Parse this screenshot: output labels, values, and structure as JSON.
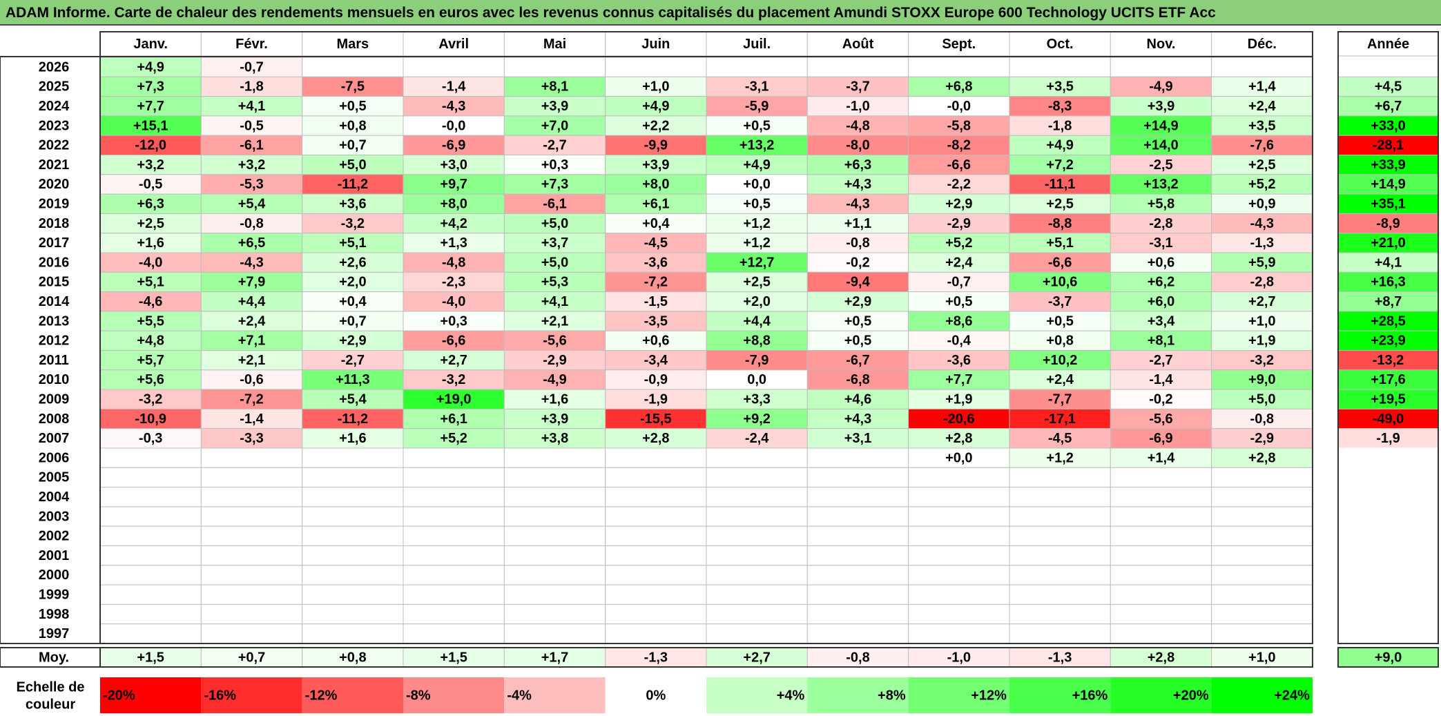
{
  "title": "ADAM Informe. Carte de chaleur des rendements mensuels en euros avec les revenus connus capitalisés du placement Amundi STOXX Europe 600 Technology UCITS ETF Acc",
  "chart_data": {
    "type": "heatmap",
    "title": "ADAM Informe. Carte de chaleur des rendements mensuels en euros avec les revenus connus capitalisés du placement Amundi STOXX Europe 600 Technology UCITS ETF Acc",
    "columns": [
      "Janv.",
      "Févr.",
      "Mars",
      "Avril",
      "Mai",
      "Juin",
      "Juil.",
      "Août",
      "Sept.",
      "Oct.",
      "Nov.",
      "Déc."
    ],
    "year_header": "Année",
    "rows": [
      {
        "year": "2026",
        "months": [
          "+4,9",
          "-0,7",
          "",
          "",
          "",
          "",
          "",
          "",
          "",
          "",
          "",
          ""
        ],
        "annual": ""
      },
      {
        "year": "2025",
        "months": [
          "+7,3",
          "-1,8",
          "-7,5",
          "-1,4",
          "+8,1",
          "+1,0",
          "-3,1",
          "-3,7",
          "+6,8",
          "+3,5",
          "-4,9",
          "+1,4"
        ],
        "annual": "+4,5"
      },
      {
        "year": "2024",
        "months": [
          "+7,7",
          "+4,1",
          "+0,5",
          "-4,3",
          "+3,9",
          "+4,9",
          "-5,9",
          "-1,0",
          "-0,0",
          "-8,3",
          "+3,9",
          "+2,4"
        ],
        "annual": "+6,7"
      },
      {
        "year": "2023",
        "months": [
          "+15,1",
          "-0,5",
          "+0,8",
          "-0,0",
          "+7,0",
          "+2,2",
          "+0,5",
          "-4,8",
          "-5,8",
          "-1,8",
          "+14,9",
          "+3,5"
        ],
        "annual": "+33,0"
      },
      {
        "year": "2022",
        "months": [
          "-12,0",
          "-6,1",
          "+0,7",
          "-6,9",
          "-2,7",
          "-9,9",
          "+13,2",
          "-8,0",
          "-8,2",
          "+4,9",
          "+14,0",
          "-7,6"
        ],
        "annual": "-28,1"
      },
      {
        "year": "2021",
        "months": [
          "+3,2",
          "+3,2",
          "+5,0",
          "+3,0",
          "+0,3",
          "+3,9",
          "+4,9",
          "+6,3",
          "-6,6",
          "+7,2",
          "-2,5",
          "+2,5"
        ],
        "annual": "+33,9"
      },
      {
        "year": "2020",
        "months": [
          "-0,5",
          "-5,3",
          "-11,2",
          "+9,7",
          "+7,3",
          "+8,0",
          "+0,0",
          "+4,3",
          "-2,2",
          "-11,1",
          "+13,2",
          "+5,2"
        ],
        "annual": "+14,9"
      },
      {
        "year": "2019",
        "months": [
          "+6,3",
          "+5,4",
          "+3,6",
          "+8,0",
          "-6,1",
          "+6,1",
          "+0,5",
          "-4,3",
          "+2,9",
          "+2,5",
          "+5,8",
          "+0,9"
        ],
        "annual": "+35,1"
      },
      {
        "year": "2018",
        "months": [
          "+2,5",
          "-0,8",
          "-3,2",
          "+4,2",
          "+5,0",
          "+0,4",
          "+1,2",
          "+1,1",
          "-2,9",
          "-8,8",
          "-2,8",
          "-4,3"
        ],
        "annual": "-8,9"
      },
      {
        "year": "2017",
        "months": [
          "+1,6",
          "+6,5",
          "+5,1",
          "+1,3",
          "+3,7",
          "-4,5",
          "+1,2",
          "-0,8",
          "+5,2",
          "+5,1",
          "-3,1",
          "-1,3"
        ],
        "annual": "+21,0"
      },
      {
        "year": "2016",
        "months": [
          "-4,0",
          "-4,3",
          "+2,6",
          "-4,8",
          "+5,0",
          "-3,6",
          "+12,7",
          "-0,2",
          "+2,4",
          "-6,6",
          "+0,6",
          "+5,9"
        ],
        "annual": "+4,1"
      },
      {
        "year": "2015",
        "months": [
          "+5,1",
          "+7,9",
          "+2,0",
          "-2,3",
          "+5,3",
          "-7,2",
          "+2,5",
          "-9,4",
          "-0,7",
          "+10,6",
          "+6,2",
          "-2,8"
        ],
        "annual": "+16,3"
      },
      {
        "year": "2014",
        "months": [
          "-4,6",
          "+4,4",
          "+0,4",
          "-4,0",
          "+4,1",
          "-1,5",
          "+2,0",
          "+2,9",
          "+0,5",
          "-3,7",
          "+6,0",
          "+2,7"
        ],
        "annual": "+8,7"
      },
      {
        "year": "2013",
        "months": [
          "+5,5",
          "+2,4",
          "+0,7",
          "+0,3",
          "+2,1",
          "-3,5",
          "+4,4",
          "+0,5",
          "+8,6",
          "+0,5",
          "+3,4",
          "+1,0"
        ],
        "annual": "+28,5"
      },
      {
        "year": "2012",
        "months": [
          "+4,8",
          "+7,1",
          "+2,9",
          "-6,6",
          "-5,6",
          "+0,6",
          "+8,8",
          "+0,5",
          "-0,4",
          "+0,8",
          "+8,1",
          "+1,9"
        ],
        "annual": "+23,9"
      },
      {
        "year": "2011",
        "months": [
          "+5,7",
          "+2,1",
          "-2,7",
          "+2,7",
          "-2,9",
          "-3,4",
          "-7,9",
          "-6,7",
          "-3,6",
          "+10,2",
          "-2,7",
          "-3,2"
        ],
        "annual": "-13,2"
      },
      {
        "year": "2010",
        "months": [
          "+5,6",
          "-0,6",
          "+11,3",
          "-3,2",
          "-4,9",
          "-0,9",
          "0,0",
          "-6,8",
          "+7,7",
          "+2,4",
          "-1,4",
          "+9,0"
        ],
        "annual": "+17,6"
      },
      {
        "year": "2009",
        "months": [
          "-3,2",
          "-7,2",
          "+5,4",
          "+19,0",
          "+1,6",
          "-1,9",
          "+3,3",
          "+4,6",
          "+1,9",
          "-7,7",
          "-0,2",
          "+5,0"
        ],
        "annual": "+19,5"
      },
      {
        "year": "2008",
        "months": [
          "-10,9",
          "-1,4",
          "-11,2",
          "+6,1",
          "+3,9",
          "-15,5",
          "+9,2",
          "+4,3",
          "-20,6",
          "-17,1",
          "-5,6",
          "-0,8"
        ],
        "annual": "-49,0"
      },
      {
        "year": "2007",
        "months": [
          "-0,3",
          "-3,3",
          "+1,6",
          "+5,2",
          "+3,8",
          "+2,8",
          "-2,4",
          "+3,1",
          "+2,8",
          "-4,5",
          "-6,9",
          "-2,9"
        ],
        "annual": "-1,9"
      },
      {
        "year": "2006",
        "months": [
          "",
          "",
          "",
          "",
          "",
          "",
          "",
          "",
          "+0,0",
          "+1,2",
          "+1,4",
          "+2,8"
        ],
        "annual": ""
      },
      {
        "year": "2005",
        "months": [
          "",
          "",
          "",
          "",
          "",
          "",
          "",
          "",
          "",
          "",
          "",
          ""
        ],
        "annual": ""
      },
      {
        "year": "2004",
        "months": [
          "",
          "",
          "",
          "",
          "",
          "",
          "",
          "",
          "",
          "",
          "",
          ""
        ],
        "annual": ""
      },
      {
        "year": "2003",
        "months": [
          "",
          "",
          "",
          "",
          "",
          "",
          "",
          "",
          "",
          "",
          "",
          ""
        ],
        "annual": ""
      },
      {
        "year": "2002",
        "months": [
          "",
          "",
          "",
          "",
          "",
          "",
          "",
          "",
          "",
          "",
          "",
          ""
        ],
        "annual": ""
      },
      {
        "year": "2001",
        "months": [
          "",
          "",
          "",
          "",
          "",
          "",
          "",
          "",
          "",
          "",
          "",
          ""
        ],
        "annual": ""
      },
      {
        "year": "2000",
        "months": [
          "",
          "",
          "",
          "",
          "",
          "",
          "",
          "",
          "",
          "",
          "",
          ""
        ],
        "annual": ""
      },
      {
        "year": "1999",
        "months": [
          "",
          "",
          "",
          "",
          "",
          "",
          "",
          "",
          "",
          "",
          "",
          ""
        ],
        "annual": ""
      },
      {
        "year": "1998",
        "months": [
          "",
          "",
          "",
          "",
          "",
          "",
          "",
          "",
          "",
          "",
          "",
          ""
        ],
        "annual": ""
      },
      {
        "year": "1997",
        "months": [
          "",
          "",
          "",
          "",
          "",
          "",
          "",
          "",
          "",
          "",
          "",
          ""
        ],
        "annual": ""
      }
    ],
    "average_row": {
      "label": "Moy.",
      "months": [
        "+1,5",
        "+0,7",
        "+0,8",
        "+1,5",
        "+1,7",
        "-1,3",
        "+2,7",
        "-0,8",
        "-1,0",
        "-1,3",
        "+2,8",
        "+1,0"
      ],
      "annual": "+9,0"
    },
    "scale": {
      "label_line1": "Echelle de",
      "label_line2": "couleur",
      "stops": [
        {
          "value": -20,
          "label": "-20%"
        },
        {
          "value": -16,
          "label": "-16%"
        },
        {
          "value": -12,
          "label": "-12%"
        },
        {
          "value": -8,
          "label": "-8%"
        },
        {
          "value": -4,
          "label": "-4%"
        },
        {
          "value": 0,
          "label": "0%"
        },
        {
          "value": 4,
          "label": "+4%"
        },
        {
          "value": 8,
          "label": "+8%"
        },
        {
          "value": 12,
          "label": "+12%"
        },
        {
          "value": 16,
          "label": "+16%"
        },
        {
          "value": 20,
          "label": "+20%"
        },
        {
          "value": 24,
          "label": "+24%"
        }
      ]
    },
    "colors": {
      "negative_max": "#ff0000",
      "neutral": "#ffffff",
      "positive_max": "#00ff00",
      "title_bg": "#8ccf7a",
      "grid": "#bdbdbd",
      "border": "#333333"
    }
  }
}
